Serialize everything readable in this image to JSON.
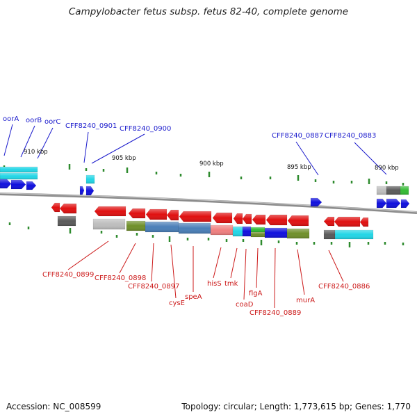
{
  "title": "Campylobacter fetus subsp. fetus 82-40, complete genome",
  "footer": {
    "accession": "Accession: NC_008599",
    "topology": "Topology: circular; Length: 1,773,615 bp; Genes: 1,770"
  },
  "colors": {
    "backbone": "#8c8c8c",
    "ticks": "#2e8b2e",
    "forward_labels": "#1a1acc",
    "reverse_labels": "#cc1a1a",
    "forward_arrow": "#1010dd",
    "reverse_arrow": "#e01010",
    "cyan": "#22d6e6",
    "gray_dark": "#5a5a5a",
    "gray_light": "#bdbdbd",
    "olive": "#6f8f2a",
    "steelblue": "#4a7fb8",
    "pink": "#f08080",
    "green": "#33bb33",
    "blue": "#1010dd"
  },
  "scale_labels": [
    "910 kbp",
    "905 kbp",
    "900 kbp",
    "895 kbp",
    "890 kbp"
  ],
  "forward_labels": [
    "oorA",
    "oorB",
    "oorC",
    "CFF8240_0901",
    "CFF8240_0900",
    "CFF8240_0887",
    "CFF8240_0883"
  ],
  "reverse_labels": [
    "CFF8240_0899",
    "CFF8240_0898",
    "CFF8240_0897",
    "cysE",
    "speA",
    "hisS",
    "tmk",
    "coaD",
    "flgA",
    "CFF8240_0889",
    "murA",
    "CFF8240_0886"
  ]
}
